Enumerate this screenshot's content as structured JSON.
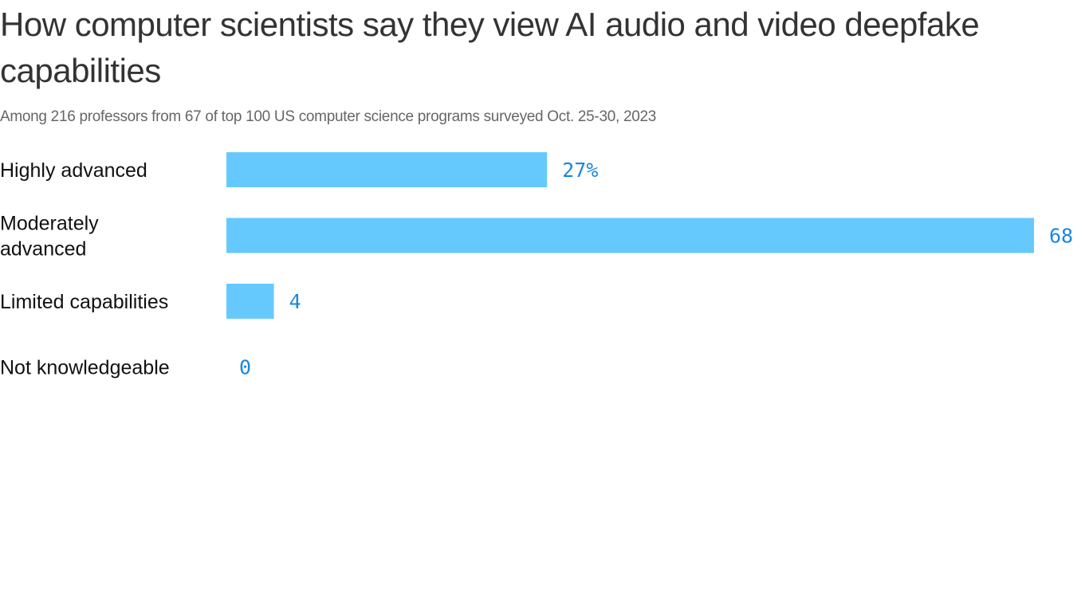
{
  "chart_data": {
    "type": "bar",
    "orientation": "horizontal",
    "title": "How computer scientists say they view AI audio and video deepfake capabilities",
    "subtitle": "Among 216 professors from 67 of top 100 US computer science programs surveyed Oct. 25-30, 2023",
    "categories": [
      [
        "Highly advanced"
      ],
      [
        "Moderately",
        "advanced"
      ],
      [
        "Limited capabilities"
      ],
      [
        "Not knowledgeable"
      ]
    ],
    "values": [
      27,
      68,
      4,
      0
    ],
    "data_labels": [
      "27%",
      "68",
      "4",
      "0"
    ],
    "unit": "%",
    "xlim": [
      0,
      68
    ],
    "grid": false,
    "colors": {
      "bar": "#66c9fe",
      "label": "#1a86e0",
      "text": "#111111",
      "title": "#333333",
      "subtitle": "#666666"
    }
  }
}
